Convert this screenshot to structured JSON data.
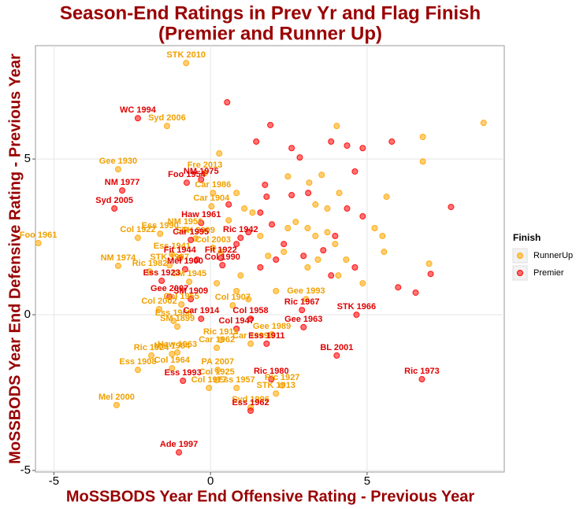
{
  "chart_data": {
    "type": "scatter",
    "title": "Season-End Ratings in Prev Yr and Flag Finish",
    "subtitle": "(Premier and Runner Up)",
    "x_label": "MoSSBODS Year End Offensive Rating - Previous Year",
    "y_label": "MoSSBODS Year End Defensive Rating - Previous Year",
    "legend_title": "Finish",
    "legend_position": "right",
    "xlim": [
      -5.59,
      9.38
    ],
    "ylim": [
      -5.05,
      8.64
    ],
    "xticks": [
      -5,
      0,
      5
    ],
    "yticks": [
      -5,
      0,
      5
    ],
    "grid": true,
    "series": [
      {
        "name": "RunnerUp",
        "color": "#FFA500",
        "x": [
          -0.78,
          -1.39,
          -2.95,
          -0.18,
          0.08,
          0.03,
          -0.81,
          -5.5,
          -1.61,
          -2.32,
          -0.48,
          0.08,
          -1.23,
          -2.95,
          -1.31,
          -1.94,
          -0.68,
          -0.93,
          -1.64,
          -1.18,
          -1.06,
          0.71,
          3.05,
          0.33,
          -1.06,
          -1.23,
          -1.89,
          0.2,
          1.28,
          1.96,
          0.23,
          -1.23,
          -2.32,
          0.2,
          -0.05,
          -3.0,
          0.83,
          1.28,
          2.29,
          2.09,
          8.72,
          6.78,
          6.78,
          4.03,
          0.28,
          3.55,
          2.47,
          3.15,
          4.11,
          5.62,
          5.24,
          5.49,
          5.54,
          6.98,
          0.83,
          1.08,
          1.34,
          2.72,
          3.1,
          3.35,
          3.73,
          3.98,
          4.08,
          4.33,
          4.86,
          2.09,
          2.34,
          0.58,
          0.33,
          0.96,
          1.21,
          3.1,
          2.47,
          3.35,
          3.73,
          1.59,
          1.84,
          0.83,
          0.2,
          3.43
        ],
        "values": [
          8.08,
          6.06,
          4.67,
          4.55,
          3.91,
          3.48,
          2.73,
          2.3,
          2.6,
          2.47,
          2.45,
          2.15,
          1.94,
          1.57,
          1.59,
          1.39,
          1.06,
          0.33,
          0.18,
          -0.2,
          -0.38,
          0.3,
          0.5,
          -0.81,
          -1.21,
          -1.26,
          -1.31,
          -1.06,
          -0.93,
          -0.63,
          -1.77,
          -1.72,
          -1.77,
          -2.1,
          -2.35,
          -2.9,
          -2.35,
          -2.98,
          -2.27,
          -2.53,
          6.16,
          5.71,
          4.92,
          6.06,
          5.18,
          4.49,
          4.44,
          4.24,
          3.91,
          3.79,
          2.78,
          2.53,
          2.02,
          1.64,
          3.91,
          3.41,
          3.28,
          2.98,
          2.78,
          2.53,
          2.65,
          2.27,
          1.26,
          1.77,
          1.01,
          0.76,
          2.02,
          3.03,
          2.02,
          1.26,
          0.5,
          1.52,
          2.78,
          3.54,
          3.41,
          2.53,
          1.89,
          0.76,
          1.01,
          1.77
        ],
        "point_labels": [
          "STK 2010",
          "Syd 2006",
          "Gee 1930",
          "Fre 2013",
          "Car 1986",
          "Car 1904",
          "NM 1950",
          "Foo 1961",
          "Ess 1990",
          "Col 1922",
          "STK 2009",
          "Col 2003",
          "Ess 1941",
          "NM 1974",
          "STK 1997",
          "Ric 1982",
          "SM 1945",
          "Col 1955",
          "Col 2002",
          "Ess 1968",
          "SM 1899",
          "Col 1907",
          "Gee 1993",
          "Ric 1919",
          "Haw 1963",
          "Mel 1954",
          "Ric 1924",
          "Car 1962",
          "Car 1999",
          "Gee 1989",
          "PA 2007",
          "Col 1964",
          "Ess 1908",
          "Col 1925",
          "Col 1977",
          "Mel 2000",
          "Ess 1957",
          "Syd 1996",
          "Ric 1927",
          "STK 1913",
          null,
          null,
          null,
          null,
          null,
          null,
          null,
          null,
          null,
          null,
          null,
          null,
          null,
          null,
          null,
          null,
          null,
          null,
          null,
          null,
          null,
          null,
          null,
          null,
          null,
          null,
          null,
          null,
          null,
          null,
          null,
          null,
          null,
          null,
          null,
          null,
          null,
          null,
          null,
          null
        ]
      },
      {
        "name": "Premier",
        "color": "#FF0000",
        "x": [
          -2.32,
          -2.82,
          -0.76,
          -0.3,
          -3.07,
          -0.3,
          -0.63,
          0.96,
          -0.98,
          0.33,
          -0.81,
          0.38,
          -1.56,
          -1.31,
          -0.63,
          -0.3,
          1.28,
          0.83,
          2.92,
          4.66,
          2.97,
          4.03,
          1.79,
          1.94,
          6.75,
          -0.88,
          1.28,
          -1.01,
          0.53,
          1.91,
          1.46,
          2.59,
          2.85,
          3.85,
          4.36,
          4.86,
          5.79,
          7.68,
          4.61,
          3.12,
          1.74,
          1.79,
          2.59,
          1.59,
          1.96,
          2.34,
          2.97,
          3.6,
          3.98,
          4.36,
          4.86,
          0.83,
          1.21,
          0.58,
          1.59,
          2.09,
          3.85,
          4.61,
          5.99,
          6.55,
          7.03,
          -0.43
        ],
        "values": [
          6.31,
          3.99,
          4.24,
          4.34,
          3.41,
          2.95,
          2.4,
          2.47,
          1.82,
          1.82,
          1.46,
          1.59,
          1.09,
          0.58,
          0.5,
          -0.13,
          -0.13,
          -0.45,
          0.15,
          0,
          -0.4,
          -1.31,
          -0.93,
          -2.07,
          -2.07,
          -2.12,
          -3.08,
          -4.42,
          6.82,
          6.09,
          5.56,
          5.35,
          5.05,
          5.56,
          5.43,
          5.35,
          5.56,
          3.46,
          4.6,
          3.91,
          4.17,
          3.79,
          3.84,
          3.28,
          2.9,
          2.27,
          1.89,
          2.07,
          2.53,
          3.41,
          3.16,
          2.27,
          2.65,
          3.54,
          1.52,
          1.77,
          1.26,
          1.52,
          0.88,
          0.71,
          1.31,
          1.77
        ],
        "point_labels": [
          "WC 1994",
          "NM 1977",
          "Foo 1954",
          "NM 1975",
          "Syd 2005",
          "Haw 1961",
          "Car 1995",
          "Ric 1942",
          "Fit 1944",
          "Fit 1922",
          "Mel 1900",
          "Col 1990",
          "Ess 1923",
          "Gee 2007",
          "SM 1909",
          "Car 1914",
          "Col 1958",
          "Col 1947",
          "Ric 1967",
          "STK 1966",
          "Gee 1963",
          "BL 2001",
          "Ess 1911",
          "Ric 1980",
          "Ric 1973",
          "Ess 1993",
          "Ess 1962",
          "Ade 1997",
          null,
          null,
          null,
          null,
          null,
          null,
          null,
          null,
          null,
          null,
          null,
          null,
          null,
          null,
          null,
          null,
          null,
          null,
          null,
          null,
          null,
          null,
          null,
          null,
          null,
          null,
          null,
          null,
          null,
          null,
          null,
          null,
          null,
          null
        ]
      }
    ]
  }
}
